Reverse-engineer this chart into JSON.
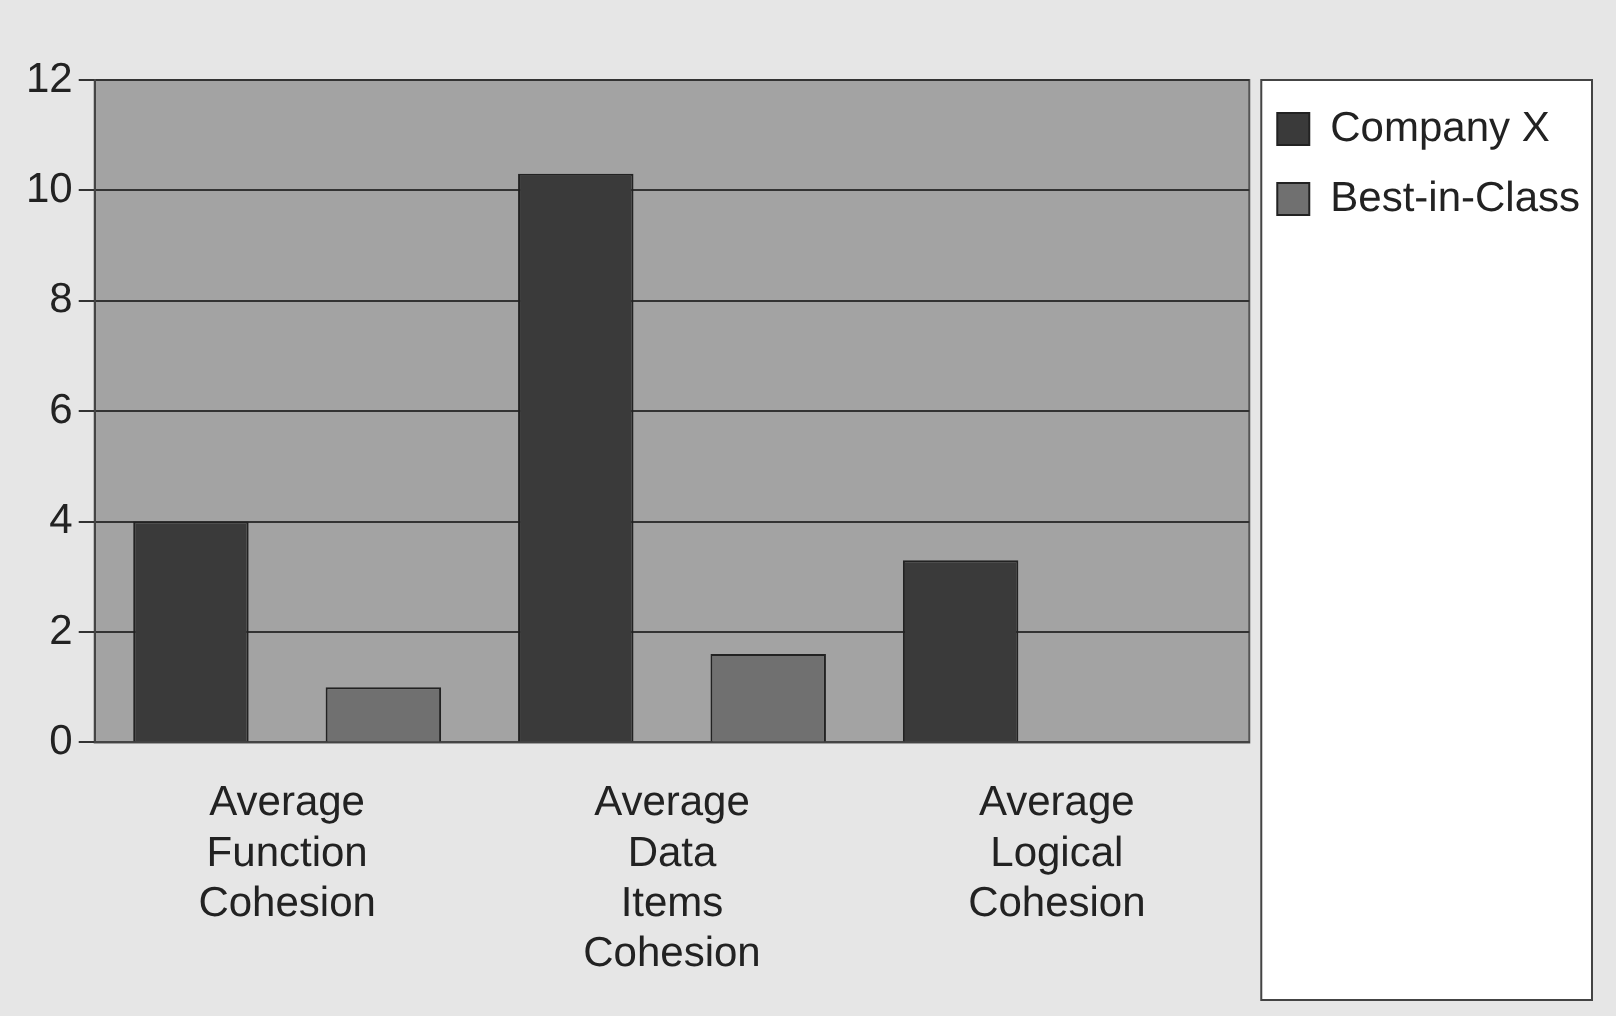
{
  "chart_data": {
    "type": "bar",
    "categories": [
      "Average Function Cohesion",
      "Average Data Items Cohesion",
      "Average Logical Cohesion"
    ],
    "series": [
      {
        "name": "Company X",
        "color": "#3a3a3a",
        "values": [
          4.0,
          10.3,
          3.3
        ]
      },
      {
        "name": "Best-in-Class",
        "color": "#707070",
        "values": [
          1.0,
          1.6,
          0
        ]
      }
    ],
    "ylim": [
      0,
      12
    ],
    "yticks": [
      0,
      2,
      4,
      6,
      8,
      10,
      12
    ],
    "grid": "y",
    "legend": "top right"
  }
}
